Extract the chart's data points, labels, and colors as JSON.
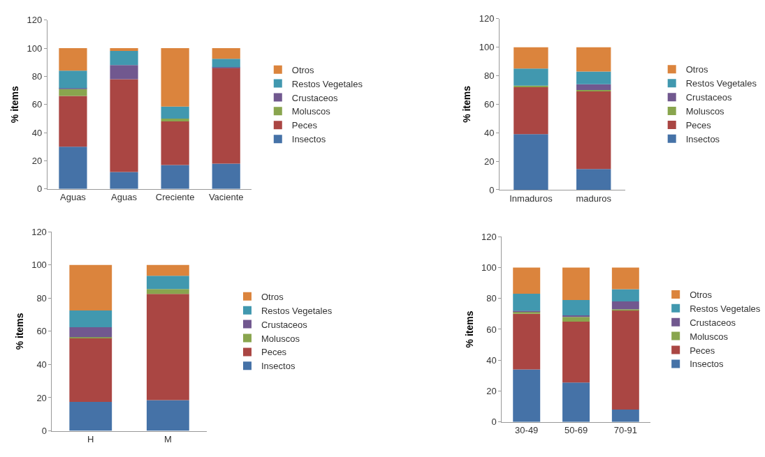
{
  "chart_data": [
    {
      "type": "bar",
      "stacked": true,
      "ylabel": "% items",
      "categories": [
        "Aguas",
        "Aguas",
        "Creciente",
        "Vaciente"
      ],
      "ylim": [
        0,
        120
      ],
      "yticks": [
        0,
        20,
        40,
        60,
        80,
        100,
        120
      ],
      "grid": false,
      "legend": "right",
      "series": [
        {
          "name": "Insectos",
          "color": "#4572a7",
          "values": [
            30,
            12,
            17,
            18
          ]
        },
        {
          "name": "Peces",
          "color": "#aa4643",
          "values": [
            36,
            66,
            31,
            68
          ]
        },
        {
          "name": "Moluscos",
          "color": "#89a54e",
          "values": [
            5,
            0,
            2,
            0
          ]
        },
        {
          "name": "Crustaceos",
          "color": "#71588f",
          "values": [
            0.5,
            10,
            0,
            0.5
          ]
        },
        {
          "name": "Restos Vegetales",
          "color": "#4198af",
          "values": [
            12.5,
            10,
            8.5,
            6
          ]
        },
        {
          "name": "Otros",
          "color": "#db843d",
          "values": [
            16,
            2,
            41.5,
            7.5
          ]
        }
      ]
    },
    {
      "type": "bar",
      "stacked": true,
      "ylabel": "% items",
      "categories": [
        "Inmaduros",
        "maduros"
      ],
      "ylim": [
        0,
        120
      ],
      "yticks": [
        0,
        20,
        40,
        60,
        80,
        100,
        120
      ],
      "grid": false,
      "legend": "right",
      "series": [
        {
          "name": "Insectos",
          "color": "#4572a7",
          "values": [
            39,
            14.5
          ]
        },
        {
          "name": "Peces",
          "color": "#aa4643",
          "values": [
            33,
            54.5
          ]
        },
        {
          "name": "Moluscos",
          "color": "#89a54e",
          "values": [
            1,
            1
          ]
        },
        {
          "name": "Crustaceos",
          "color": "#71588f",
          "values": [
            0,
            4
          ]
        },
        {
          "name": "Restos Vegetales",
          "color": "#4198af",
          "values": [
            12,
            9
          ]
        },
        {
          "name": "Otros",
          "color": "#db843d",
          "values": [
            15,
            17
          ]
        }
      ]
    },
    {
      "type": "bar",
      "stacked": true,
      "ylabel": "% items",
      "categories": [
        "H",
        "M"
      ],
      "ylim": [
        0,
        120
      ],
      "yticks": [
        0,
        20,
        40,
        60,
        80,
        100,
        120
      ],
      "grid": false,
      "legend": "right",
      "series": [
        {
          "name": "Insectos",
          "color": "#4572a7",
          "values": [
            17.5,
            18.5
          ]
        },
        {
          "name": "Peces",
          "color": "#aa4643",
          "values": [
            38.5,
            64
          ]
        },
        {
          "name": "Moluscos",
          "color": "#89a54e",
          "values": [
            0.5,
            3
          ]
        },
        {
          "name": "Crustaceos",
          "color": "#71588f",
          "values": [
            6,
            0
          ]
        },
        {
          "name": "Restos Vegetales",
          "color": "#4198af",
          "values": [
            10,
            8
          ]
        },
        {
          "name": "Otros",
          "color": "#db843d",
          "values": [
            27.5,
            6.5
          ]
        }
      ]
    },
    {
      "type": "bar",
      "stacked": true,
      "ylabel": "% items",
      "categories": [
        "30-49",
        "50-69",
        "70-91"
      ],
      "ylim": [
        0,
        120
      ],
      "yticks": [
        0,
        20,
        40,
        60,
        80,
        100,
        120
      ],
      "grid": false,
      "legend": "right",
      "series": [
        {
          "name": "Insectos",
          "color": "#4572a7",
          "values": [
            34,
            25.5,
            8
          ]
        },
        {
          "name": "Peces",
          "color": "#aa4643",
          "values": [
            36,
            39.5,
            64.5
          ]
        },
        {
          "name": "Moluscos",
          "color": "#89a54e",
          "values": [
            1.5,
            3,
            0.5
          ]
        },
        {
          "name": "Crustaceos",
          "color": "#71588f",
          "values": [
            0.5,
            1,
            5
          ]
        },
        {
          "name": "Restos Vegetales",
          "color": "#4198af",
          "values": [
            11,
            10,
            8
          ]
        },
        {
          "name": "Otros",
          "color": "#db843d",
          "values": [
            17,
            21,
            14
          ]
        }
      ]
    }
  ]
}
